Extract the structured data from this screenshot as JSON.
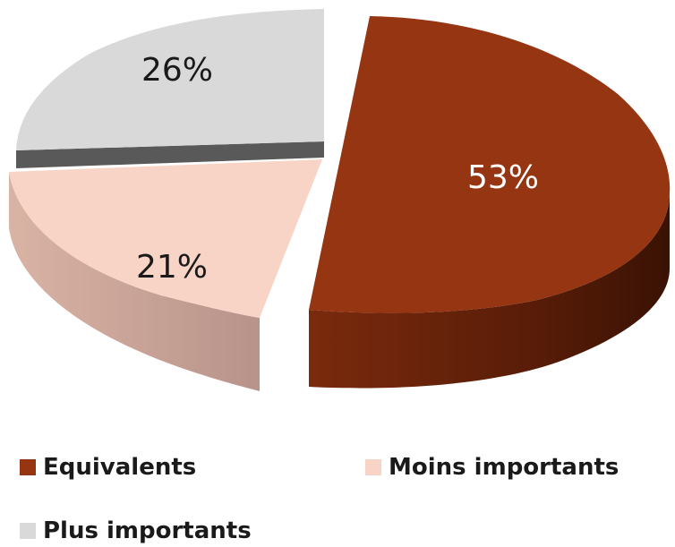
{
  "chart_data": {
    "type": "pie",
    "title": "",
    "slices": [
      {
        "label": "Equivalents",
        "value": 53,
        "display": "53%",
        "color": "#953512"
      },
      {
        "label": "Moins importants",
        "value": 21,
        "display": "21%",
        "color": "#f7d4c6"
      },
      {
        "label": "Plus importants",
        "value": 26,
        "display": "26%",
        "color": "#d9d9d9"
      }
    ],
    "legend": {
      "placement": "bottom",
      "items": [
        {
          "label": "Equivalents",
          "color": "#953512"
        },
        {
          "label": "Moins importants",
          "color": "#f7d4c6"
        },
        {
          "label": "Plus importants",
          "color": "#d9d9d9"
        }
      ]
    }
  }
}
